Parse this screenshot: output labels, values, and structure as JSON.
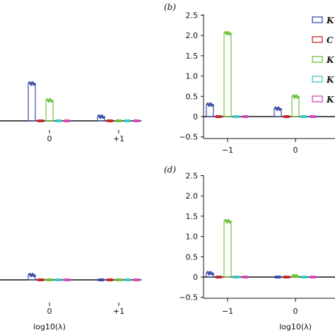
{
  "chart_data": [
    {
      "panel_label": "",
      "type": "bar",
      "x_ticks": [
        "0",
        "+1"
      ],
      "y_ticks": [],
      "xlabel": "",
      "series": [
        {
          "name": "",
          "color": "#3a4aa6",
          "points": [
            {
              "x": 0,
              "y": 0.6
            },
            {
              "x": 1,
              "y": 0.07
            }
          ]
        },
        {
          "name": "",
          "color": "#c62828",
          "points": [
            {
              "x": 0,
              "y": 0.0
            },
            {
              "x": 1,
              "y": 0.0
            }
          ]
        },
        {
          "name": "",
          "color": "#6cc23a",
          "points": [
            {
              "x": 0,
              "y": 0.33
            },
            {
              "x": 1,
              "y": 0.0
            }
          ]
        },
        {
          "name": "",
          "color": "#3ec6c6",
          "points": [
            {
              "x": 0,
              "y": 0.0
            },
            {
              "x": 1,
              "y": 0.0
            }
          ]
        },
        {
          "name": "",
          "color": "#d04ab8",
          "points": [
            {
              "x": 0,
              "y": 0.0
            },
            {
              "x": 1,
              "y": 0.0
            }
          ]
        }
      ]
    },
    {
      "panel_label": "(b)",
      "type": "bar",
      "x_ticks": [
        "−1",
        "0"
      ],
      "y_ticks": [
        "−0.5",
        "0",
        "0.5",
        "1.0",
        "1.5",
        "2.0",
        "2.5"
      ],
      "xlabel": "",
      "series": [
        {
          "name": "K",
          "color": "#3a4aa6",
          "points": [
            {
              "x": -1,
              "y": 0.3
            },
            {
              "x": 0,
              "y": 0.2
            }
          ]
        },
        {
          "name": "C",
          "color": "#c62828",
          "points": [
            {
              "x": -1,
              "y": 0.0
            },
            {
              "x": 0,
              "y": 0.0
            }
          ]
        },
        {
          "name": "K",
          "color": "#6cc23a",
          "points": [
            {
              "x": -1,
              "y": 2.06
            },
            {
              "x": 0,
              "y": 0.5
            }
          ]
        },
        {
          "name": "K",
          "color": "#3ec6c6",
          "points": [
            {
              "x": -1,
              "y": 0.0
            },
            {
              "x": 0,
              "y": 0.0
            }
          ]
        },
        {
          "name": "K",
          "color": "#d04ab8",
          "points": [
            {
              "x": -1,
              "y": 0.0
            },
            {
              "x": 0,
              "y": 0.0
            }
          ]
        }
      ]
    },
    {
      "panel_label": "",
      "type": "bar",
      "x_ticks": [
        "0",
        "+1"
      ],
      "y_ticks": [],
      "xlabel": "log10(λ)",
      "series": [
        {
          "name": "",
          "color": "#3a4aa6",
          "points": [
            {
              "x": 0,
              "y": 0.08
            },
            {
              "x": 1,
              "y": 0.0
            }
          ]
        },
        {
          "name": "",
          "color": "#c62828",
          "points": [
            {
              "x": 0,
              "y": 0.0
            },
            {
              "x": 1,
              "y": 0.0
            }
          ]
        },
        {
          "name": "",
          "color": "#6cc23a",
          "points": [
            {
              "x": 0,
              "y": 0.0
            },
            {
              "x": 1,
              "y": 0.0
            }
          ]
        },
        {
          "name": "",
          "color": "#3ec6c6",
          "points": [
            {
              "x": 0,
              "y": 0.0
            },
            {
              "x": 1,
              "y": 0.0
            }
          ]
        },
        {
          "name": "",
          "color": "#d04ab8",
          "points": [
            {
              "x": 0,
              "y": 0.0
            },
            {
              "x": 1,
              "y": 0.0
            }
          ]
        }
      ]
    },
    {
      "panel_label": "(d)",
      "type": "bar",
      "x_ticks": [
        "−1",
        "0"
      ],
      "y_ticks": [
        "−0.5",
        "0",
        "0.5",
        "1.0",
        "1.5",
        "2.0",
        "2.5"
      ],
      "xlabel": "log10(λ)",
      "series": [
        {
          "name": "",
          "color": "#3a4aa6",
          "points": [
            {
              "x": -1,
              "y": 0.1
            },
            {
              "x": 0,
              "y": 0.0
            }
          ]
        },
        {
          "name": "",
          "color": "#c62828",
          "points": [
            {
              "x": -1,
              "y": 0.0
            },
            {
              "x": 0,
              "y": 0.0
            }
          ]
        },
        {
          "name": "",
          "color": "#6cc23a",
          "points": [
            {
              "x": -1,
              "y": 1.38
            },
            {
              "x": 0,
              "y": 0.03
            }
          ]
        },
        {
          "name": "",
          "color": "#3ec6c6",
          "points": [
            {
              "x": -1,
              "y": 0.0
            },
            {
              "x": 0,
              "y": 0.0
            }
          ]
        },
        {
          "name": "",
          "color": "#d04ab8",
          "points": [
            {
              "x": -1,
              "y": 0.0
            },
            {
              "x": 0,
              "y": 0.0
            }
          ]
        }
      ]
    }
  ],
  "legend": {
    "placement": "right (cropped)",
    "entries": [
      {
        "label": "K",
        "color": "#3a4aa6"
      },
      {
        "label": "C",
        "color": "#c62828"
      },
      {
        "label": "K",
        "color": "#6cc23a"
      },
      {
        "label": "K",
        "color": "#3ec6c6"
      },
      {
        "label": "K",
        "color": "#d04ab8"
      }
    ]
  }
}
